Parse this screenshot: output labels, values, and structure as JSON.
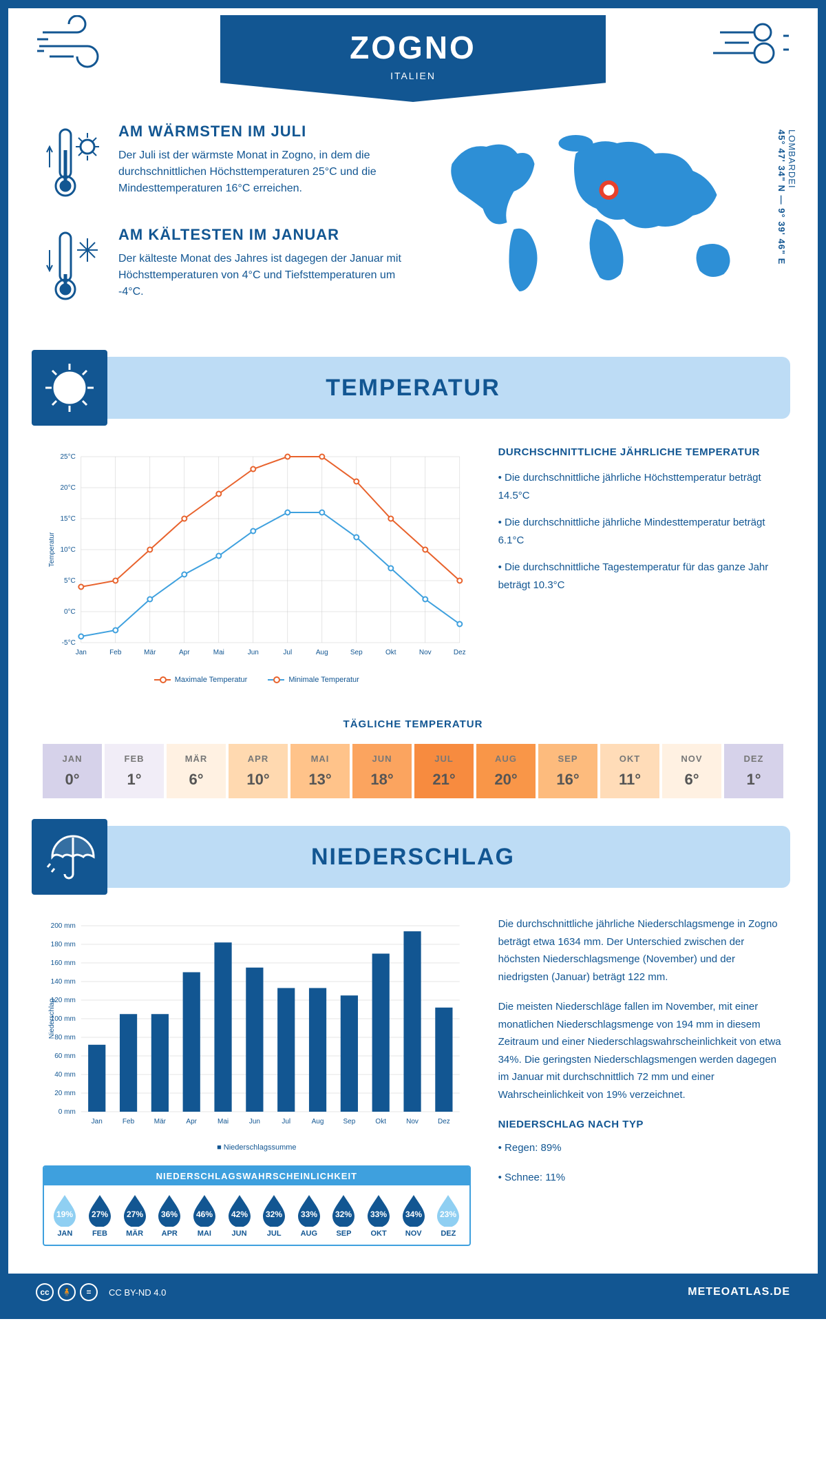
{
  "header": {
    "title": "ZOGNO",
    "subtitle": "ITALIEN"
  },
  "coords": {
    "region": "LOMBARDEI",
    "value": "45° 47' 34\" N — 9° 39' 46\" E"
  },
  "warmest": {
    "title": "AM WÄRMSTEN IM JULI",
    "text": "Der Juli ist der wärmste Monat in Zogno, in dem die durchschnittlichen Höchsttemperaturen 25°C und die Mindesttemperaturen 16°C erreichen."
  },
  "coldest": {
    "title": "AM KÄLTESTEN IM JANUAR",
    "text": "Der kälteste Monat des Jahres ist dagegen der Januar mit Höchsttemperaturen von 4°C und Tiefsttemperaturen um -4°C."
  },
  "section_temp": "TEMPERATUR",
  "section_precip": "NIEDERSCHLAG",
  "temp_chart": {
    "type": "line",
    "months": [
      "Jan",
      "Feb",
      "Mär",
      "Apr",
      "Mai",
      "Jun",
      "Jul",
      "Aug",
      "Sep",
      "Okt",
      "Nov",
      "Dez"
    ],
    "max_series": {
      "label": "Maximale Temperatur",
      "color": "#e8622c",
      "values": [
        4,
        5,
        10,
        15,
        19,
        23,
        25,
        25,
        21,
        15,
        10,
        5
      ]
    },
    "min_series": {
      "label": "Minimale Temperatur",
      "color": "#3ea0de",
      "values": [
        -4,
        -3,
        2,
        6,
        9,
        13,
        16,
        16,
        12,
        7,
        2,
        -2
      ]
    },
    "ylabel": "Temperatur",
    "ymin": -5,
    "ymax": 25,
    "ystep": 5,
    "yticks": [
      "-5°C",
      "0°C",
      "5°C",
      "10°C",
      "15°C",
      "20°C",
      "25°C"
    ],
    "grid_color": "#cccccc",
    "line_width": 2
  },
  "temp_info": {
    "title": "DURCHSCHNITTLICHE JÄHRLICHE TEMPERATUR",
    "bullets": [
      "• Die durchschnittliche jährliche Höchsttemperatur beträgt 14.5°C",
      "• Die durchschnittliche jährliche Mindesttemperatur beträgt 6.1°C",
      "• Die durchschnittliche Tagestemperatur für das ganze Jahr beträgt 10.3°C"
    ]
  },
  "daily_temp": {
    "title": "TÄGLICHE TEMPERATUR",
    "months": [
      "JAN",
      "FEB",
      "MÄR",
      "APR",
      "MAI",
      "JUN",
      "JUL",
      "AUG",
      "SEP",
      "OKT",
      "NOV",
      "DEZ"
    ],
    "values": [
      "0°",
      "1°",
      "6°",
      "10°",
      "13°",
      "18°",
      "21°",
      "20°",
      "16°",
      "11°",
      "6°",
      "1°"
    ],
    "colors": [
      "#d6d2ea",
      "#f1edf7",
      "#fff1e2",
      "#ffd9b0",
      "#ffc38a",
      "#fba45f",
      "#f78b3f",
      "#f99648",
      "#fdbb7d",
      "#ffdcb8",
      "#fff1e2",
      "#d6d2ea"
    ]
  },
  "precip_chart": {
    "type": "bar",
    "months": [
      "Jan",
      "Feb",
      "Mär",
      "Apr",
      "Mai",
      "Jun",
      "Jul",
      "Aug",
      "Sep",
      "Okt",
      "Nov",
      "Dez"
    ],
    "values": [
      72,
      105,
      105,
      150,
      182,
      155,
      133,
      133,
      125,
      170,
      194,
      112
    ],
    "bar_color": "#125692",
    "label": "Niederschlagssumme",
    "ylabel": "Niederschlag",
    "ymax": 200,
    "ystep": 20,
    "grid_color": "#cccccc"
  },
  "precip_text": {
    "p1": "Die durchschnittliche jährliche Niederschlagsmenge in Zogno beträgt etwa 1634 mm. Der Unterschied zwischen der höchsten Niederschlagsmenge (November) und der niedrigsten (Januar) beträgt 122 mm.",
    "p2": "Die meisten Niederschläge fallen im November, mit einer monatlichen Niederschlagsmenge von 194 mm in diesem Zeitraum und einer Niederschlagswahrscheinlichkeit von etwa 34%. Die geringsten Niederschlagsmengen werden dagegen im Januar mit durchschnittlich 72 mm und einer Wahrscheinlichkeit von 19% verzeichnet.",
    "type_title": "NIEDERSCHLAG NACH TYP",
    "type_rain": "• Regen: 89%",
    "type_snow": "• Schnee: 11%"
  },
  "prob": {
    "title": "NIEDERSCHLAGSWAHRSCHEINLICHKEIT",
    "months": [
      "JAN",
      "FEB",
      "MÄR",
      "APR",
      "MAI",
      "JUN",
      "JUL",
      "AUG",
      "SEP",
      "OKT",
      "NOV",
      "DEZ"
    ],
    "values": [
      "19%",
      "27%",
      "27%",
      "36%",
      "46%",
      "42%",
      "32%",
      "33%",
      "32%",
      "33%",
      "34%",
      "23%"
    ],
    "colors": [
      "#8fcff2",
      "#125692",
      "#125692",
      "#125692",
      "#125692",
      "#125692",
      "#125692",
      "#125692",
      "#125692",
      "#125692",
      "#125692",
      "#8fcff2"
    ]
  },
  "footer": {
    "license": "CC BY-ND 4.0",
    "site": "METEOATLAS.DE"
  }
}
